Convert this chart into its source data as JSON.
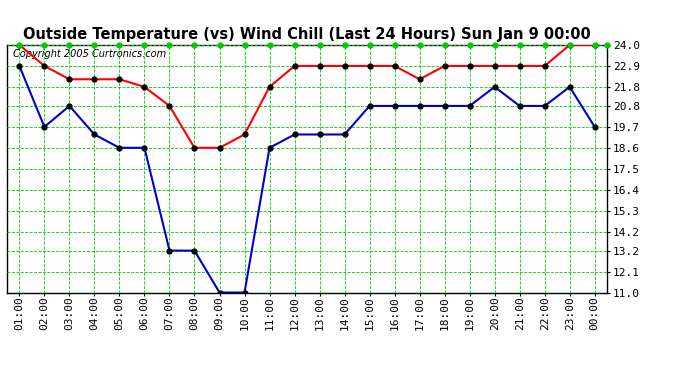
{
  "title": "Outside Temperature (vs) Wind Chill (Last 24 Hours) Sun Jan 9 00:00",
  "copyright": "Copyright 2005 Curtronics.com",
  "x_labels": [
    "01:00",
    "02:00",
    "03:00",
    "04:00",
    "05:00",
    "06:00",
    "07:00",
    "08:00",
    "09:00",
    "10:00",
    "11:00",
    "12:00",
    "13:00",
    "14:00",
    "15:00",
    "16:00",
    "17:00",
    "18:00",
    "19:00",
    "20:00",
    "21:00",
    "22:00",
    "23:00",
    "00:00"
  ],
  "y_ticks": [
    11.0,
    12.1,
    13.2,
    14.2,
    15.3,
    16.4,
    17.5,
    18.6,
    19.7,
    20.8,
    21.8,
    22.9,
    24.0
  ],
  "ylim_min": 11.0,
  "ylim_max": 24.0,
  "red_data": [
    24.0,
    22.9,
    22.2,
    22.2,
    22.2,
    21.8,
    20.8,
    18.6,
    18.6,
    19.3,
    21.8,
    22.9,
    22.9,
    22.9,
    22.9,
    22.9,
    22.2,
    22.9,
    22.9,
    22.9,
    22.9,
    22.9,
    24.0,
    24.0
  ],
  "blue_data": [
    22.9,
    19.7,
    20.8,
    19.3,
    18.6,
    18.6,
    13.2,
    13.2,
    11.0,
    11.0,
    18.6,
    19.3,
    19.3,
    19.3,
    20.8,
    20.8,
    20.8,
    20.8,
    20.8,
    21.8,
    20.8,
    20.8,
    21.8,
    19.7
  ],
  "red_color": "#ff0000",
  "blue_color": "#0000cc",
  "marker_color": "#000000",
  "green_dot_color": "#00cc00",
  "grid_color": "#00cc00",
  "bg_color": "#ffffff",
  "border_color": "#000000",
  "title_fontsize": 10.5,
  "copyright_fontsize": 7,
  "tick_fontsize": 8,
  "line_width": 1.5,
  "marker_size": 3.5
}
